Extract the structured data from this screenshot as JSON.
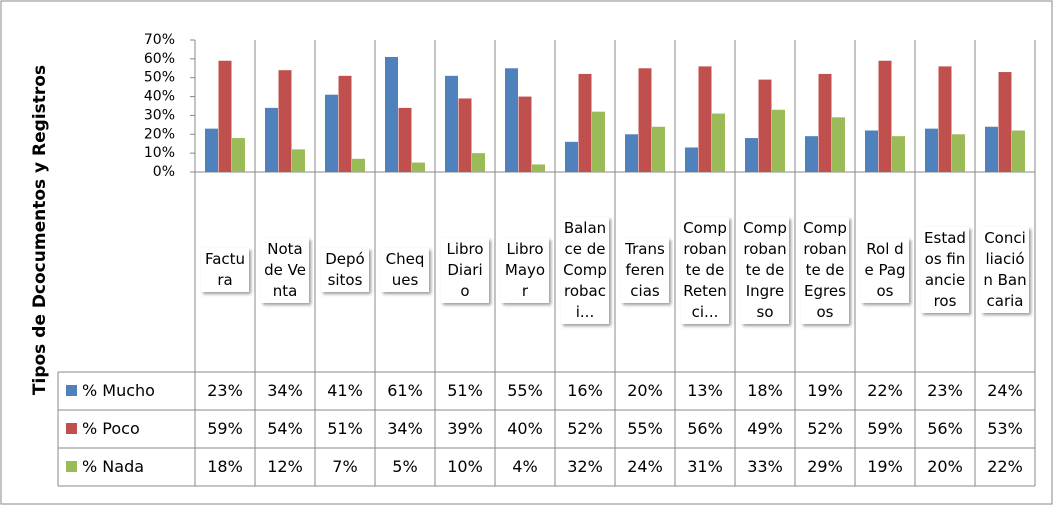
{
  "chart_data": {
    "type": "bar",
    "y_axis_label": "Tipos de Dcocumentos y Registros",
    "categories": [
      "Factura",
      "Nota de Venta",
      "Depósitos",
      "Cheques",
      "Libro Diario",
      "Libro Mayor",
      "Balance de Comprobaci...",
      "Transferencias",
      "Comprobante de Retenci...",
      "Comprobante de Ingreso",
      "Comprobante de Egresos",
      "Rol de Pagos",
      "Estados financieros",
      "Conciliación Bancaria"
    ],
    "series": [
      {
        "name": "% Mucho",
        "color": "#4f81bd",
        "values": [
          23,
          34,
          41,
          61,
          51,
          55,
          16,
          20,
          13,
          18,
          19,
          22,
          23,
          24
        ],
        "value_labels": [
          "23%",
          "34%",
          "41%",
          "61%",
          "51%",
          "55%",
          "16%",
          "20%",
          "13%",
          "18%",
          "19%",
          "22%",
          "23%",
          "24%"
        ]
      },
      {
        "name": "% Poco",
        "color": "#c0504d",
        "values": [
          59,
          54,
          51,
          34,
          39,
          40,
          52,
          55,
          56,
          49,
          52,
          59,
          56,
          53
        ],
        "value_labels": [
          "59%",
          "54%",
          "51%",
          "34%",
          "39%",
          "40%",
          "52%",
          "55%",
          "56%",
          "49%",
          "52%",
          "59%",
          "56%",
          "53%"
        ]
      },
      {
        "name": "% Nada",
        "color": "#9bbb59",
        "values": [
          18,
          12,
          7,
          5,
          10,
          4,
          32,
          24,
          31,
          33,
          29,
          19,
          20,
          22
        ],
        "value_labels": [
          "18%",
          "12%",
          "7%",
          "5%",
          "10%",
          "4%",
          "32%",
          "24%",
          "31%",
          "33%",
          "29%",
          "19%",
          "20%",
          "22%"
        ]
      }
    ],
    "ylim": [
      0,
      70
    ],
    "yticks": [
      {
        "value": 0,
        "label": "0%"
      },
      {
        "value": 10,
        "label": "10%"
      },
      {
        "value": 20,
        "label": "20%"
      },
      {
        "value": 30,
        "label": "30%"
      },
      {
        "value": 40,
        "label": "40%"
      },
      {
        "value": 50,
        "label": "50%"
      },
      {
        "value": 60,
        "label": "60%"
      },
      {
        "value": 70,
        "label": "70%"
      }
    ],
    "grid": false
  }
}
